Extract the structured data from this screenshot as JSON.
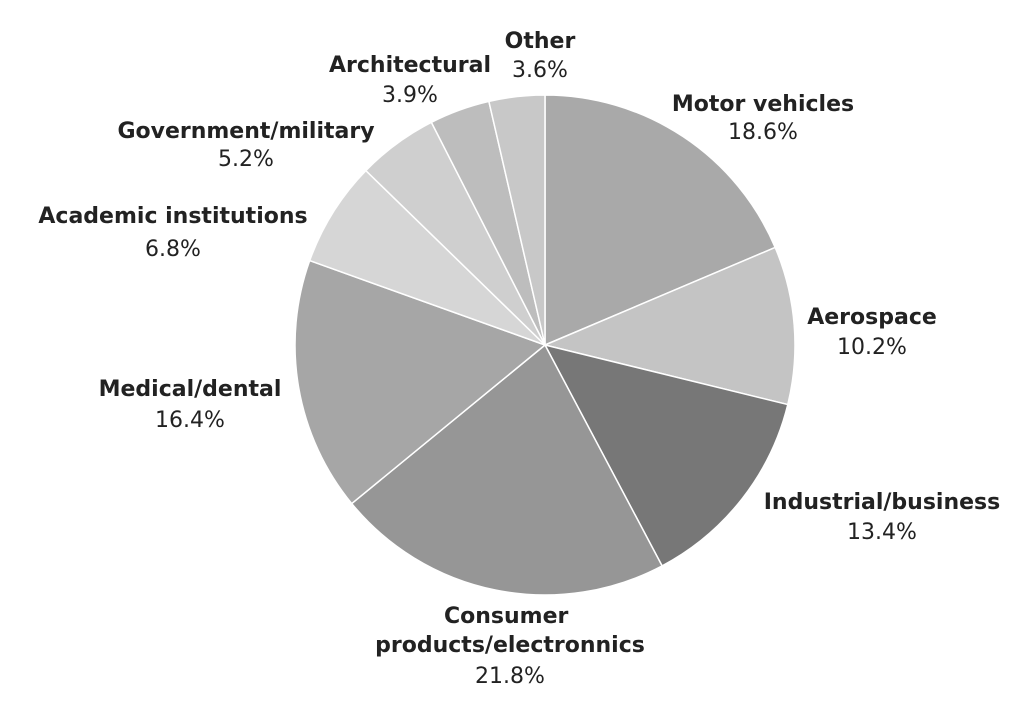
{
  "chart_data": {
    "type": "pie",
    "categories": [
      "Motor vehicles",
      "Aerospace",
      "Industrial/business",
      "Consumer products/electronnics",
      "Medical/dental",
      "Academic institutions",
      "Government/military",
      "Architectural",
      "Other"
    ],
    "values": [
      18.6,
      10.2,
      13.4,
      21.8,
      16.4,
      6.8,
      5.2,
      3.9,
      3.6
    ],
    "value_labels": [
      "18.6%",
      "10.2%",
      "13.4%",
      "21.8%",
      "16.4%",
      "6.8%",
      "5.2%",
      "3.9%",
      "3.6%"
    ],
    "colors": [
      "#a9a9a9",
      "#c4c4c4",
      "#777777",
      "#969696",
      "#a6a6a6",
      "#d6d6d6",
      "#cfcfcf",
      "#bdbdbd",
      "#c8c8c8"
    ]
  }
}
